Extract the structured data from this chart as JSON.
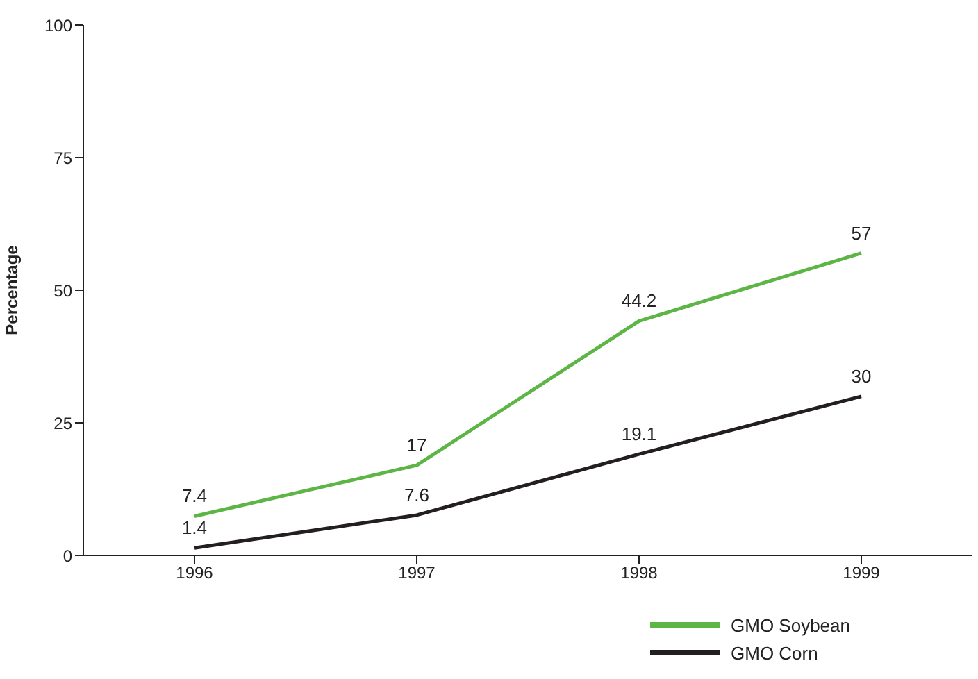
{
  "chart_data": {
    "type": "line",
    "ylabel": "Percentage",
    "categories": [
      "1996",
      "1997",
      "1998",
      "1999"
    ],
    "series": [
      {
        "name": "GMO Soybean",
        "color": "#5cb545",
        "values": [
          7.4,
          17,
          44.2,
          57
        ]
      },
      {
        "name": "GMO Corn",
        "color": "#231f20",
        "values": [
          1.4,
          7.6,
          19.1,
          30
        ]
      }
    ],
    "ylim": [
      0,
      100
    ],
    "yticks": [
      0,
      25,
      50,
      75,
      100
    ],
    "grid": false,
    "legend": "bottom right",
    "marker": "none",
    "line_style": "solid",
    "data_labels": true
  }
}
